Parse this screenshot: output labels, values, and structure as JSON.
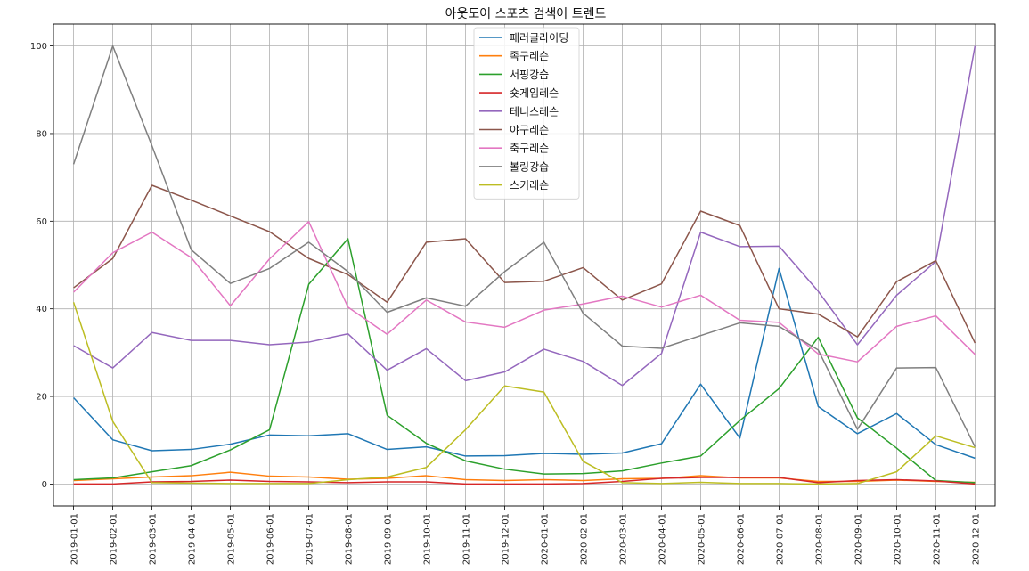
{
  "chart_data": {
    "type": "line",
    "title": "아웃도어 스포츠 검색어 트렌드",
    "xlabel": "",
    "ylabel": "",
    "x": [
      "2019-01-01",
      "2019-02-01",
      "2019-03-01",
      "2019-04-01",
      "2019-05-01",
      "2019-06-01",
      "2019-07-01",
      "2019-08-01",
      "2019-09-01",
      "2019-10-01",
      "2019-11-01",
      "2019-12-01",
      "2020-01-01",
      "2020-02-01",
      "2020-03-01",
      "2020-04-01",
      "2020-05-01",
      "2020-06-01",
      "2020-07-01",
      "2020-08-01",
      "2020-09-01",
      "2020-10-01",
      "2020-11-01",
      "2020-12-01"
    ],
    "ylim": [
      -5,
      105
    ],
    "yticks": [
      0,
      20,
      40,
      60,
      80,
      100
    ],
    "grid": true,
    "legend_position": "top-center",
    "series": [
      {
        "name": "패러글라이딩",
        "color": "#1f77b4",
        "values": [
          19.7,
          10.1,
          7.6,
          7.9,
          9.1,
          11.2,
          11.0,
          11.5,
          7.9,
          8.5,
          6.4,
          6.5,
          7.0,
          6.8,
          7.1,
          9.2,
          22.8,
          10.5,
          49.2,
          17.7,
          11.5,
          16.1,
          9.0,
          5.9
        ]
      },
      {
        "name": "족구레슨",
        "color": "#ff7f0e",
        "values": [
          0.8,
          1.2,
          1.6,
          1.9,
          2.7,
          1.8,
          1.6,
          1.1,
          1.3,
          1.9,
          1.0,
          0.8,
          1.0,
          0.8,
          1.2,
          1.3,
          1.9,
          1.4,
          1.4,
          0.6,
          0.6,
          0.9,
          0.6,
          0.4
        ]
      },
      {
        "name": "서핑강습",
        "color": "#2ca02c",
        "values": [
          1.0,
          1.4,
          2.8,
          4.2,
          7.8,
          12.4,
          45.6,
          56.0,
          15.7,
          9.3,
          5.3,
          3.4,
          2.3,
          2.4,
          3.0,
          4.8,
          6.4,
          14.5,
          21.8,
          33.5,
          15.1,
          8.2,
          0.8,
          0.3
        ]
      },
      {
        "name": "숏게임레슨",
        "color": "#d62728",
        "values": [
          0.0,
          0.0,
          0.5,
          0.6,
          0.9,
          0.6,
          0.5,
          0.3,
          0.5,
          0.5,
          0.0,
          0.0,
          0.0,
          0.1,
          0.6,
          1.3,
          1.5,
          1.5,
          1.5,
          0.3,
          0.8,
          1.0,
          0.7,
          0.0
        ]
      },
      {
        "name": "테니스레슨",
        "color": "#9467bd",
        "values": [
          31.6,
          26.5,
          34.6,
          32.8,
          32.8,
          31.8,
          32.4,
          34.3,
          26.0,
          30.9,
          23.6,
          25.6,
          30.8,
          28.0,
          22.5,
          29.8,
          57.5,
          54.2,
          54.3,
          44.0,
          31.8,
          43.1,
          50.8,
          100.0
        ]
      },
      {
        "name": "야구레슨",
        "color": "#8c564b",
        "values": [
          44.8,
          51.5,
          68.2,
          64.8,
          61.2,
          57.6,
          51.5,
          47.8,
          41.5,
          55.2,
          56.0,
          46.0,
          46.3,
          49.4,
          42.0,
          45.7,
          62.3,
          59.0,
          40.0,
          38.8,
          33.6,
          46.2,
          51.0,
          32.2
        ]
      },
      {
        "name": "축구레슨",
        "color": "#e377c2",
        "values": [
          43.8,
          52.8,
          57.5,
          51.7,
          40.7,
          51.4,
          59.9,
          40.4,
          34.2,
          42.0,
          37.0,
          35.8,
          39.7,
          41.1,
          42.9,
          40.4,
          43.1,
          37.4,
          36.9,
          29.7,
          27.9,
          36.0,
          38.4,
          29.6
        ]
      },
      {
        "name": "볼링강습",
        "color": "#7f7f7f",
        "values": [
          73.0,
          100.0,
          77.2,
          53.5,
          45.8,
          49.2,
          55.2,
          48.5,
          39.2,
          42.5,
          40.6,
          48.5,
          55.2,
          39.0,
          31.5,
          31.0,
          33.9,
          36.8,
          36.0,
          30.6,
          12.5,
          26.5,
          26.6,
          8.5
        ]
      },
      {
        "name": "스키레슨",
        "color": "#bcbd22",
        "values": [
          41.5,
          14.3,
          0.3,
          0.2,
          0.1,
          0.1,
          0.1,
          1.0,
          1.6,
          3.8,
          12.4,
          22.4,
          21.0,
          5.2,
          0.3,
          0.1,
          0.4,
          0.1,
          0.1,
          0.0,
          0.1,
          2.8,
          11.0,
          8.3
        ]
      }
    ]
  }
}
